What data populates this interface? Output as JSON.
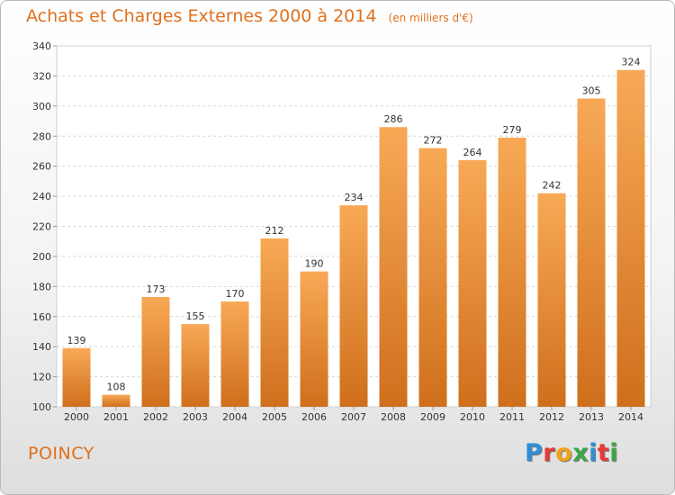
{
  "title": "Achats et Charges Externes 2000 à 2014",
  "unit_note": "(en milliers d'€)",
  "city": "POINCY",
  "brand": {
    "text": "Proxiti",
    "letter_colors": [
      "#2f8fd6",
      "#e53935",
      "#f2a218",
      "#3aa84a",
      "#2f8fd6",
      "#e53935",
      "#3aa84a"
    ]
  },
  "colors": {
    "bar_light": "#f8a956",
    "bar_dark": "#cf6f1c",
    "accent": "#e0701c"
  },
  "chart_data": {
    "type": "bar",
    "categories": [
      "2000",
      "2001",
      "2002",
      "2003",
      "2004",
      "2005",
      "2006",
      "2007",
      "2008",
      "2009",
      "2010",
      "2011",
      "2012",
      "2013",
      "2014"
    ],
    "values": [
      139,
      108,
      173,
      155,
      170,
      212,
      190,
      234,
      286,
      272,
      264,
      279,
      242,
      305,
      324
    ],
    "title": "Achats et Charges Externes 2000 à 2014",
    "xlabel": "",
    "ylabel": "",
    "ylim": [
      100,
      340
    ],
    "yticks": [
      100,
      120,
      140,
      160,
      180,
      200,
      220,
      240,
      260,
      280,
      300,
      320,
      340
    ],
    "grid": true,
    "data_labels": true
  }
}
